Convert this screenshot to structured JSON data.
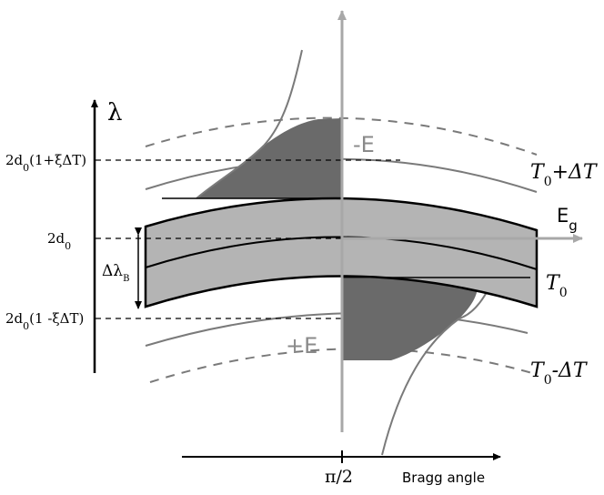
{
  "y_axis": {
    "symbol": "λ"
  },
  "x_axis": {
    "tick_label": "π/2",
    "label": "Bragg angle"
  },
  "field_axis": {
    "label_main": "E",
    "label_sub": "g"
  },
  "level_labels": {
    "upper": {
      "main": "2d",
      "sub": "0",
      "rest": "(1+ξΔT)"
    },
    "center": {
      "main": "2d",
      "sub": "0"
    },
    "lower": {
      "main": "2d",
      "sub": "0",
      "rest": "(1 -ξΔT)"
    }
  },
  "bandwidth_label": {
    "main": "Δλ",
    "sub": "B"
  },
  "field_labels": {
    "negative": "-E",
    "positive": "+E"
  },
  "temperature_labels": {
    "upper": {
      "main": "T",
      "sub": "0",
      "rest": "+ΔT"
    },
    "center": {
      "main": "T",
      "sub": "0"
    },
    "lower": {
      "main": "T",
      "sub": "0",
      "rest": "-ΔT"
    }
  },
  "colors": {
    "band_fill": "#b4b4b4",
    "shaded_fill": "#6a6a6a",
    "curve_gray": "#7a7a7a",
    "axis_gray": "#a8a8a8",
    "ink": "#000000"
  }
}
